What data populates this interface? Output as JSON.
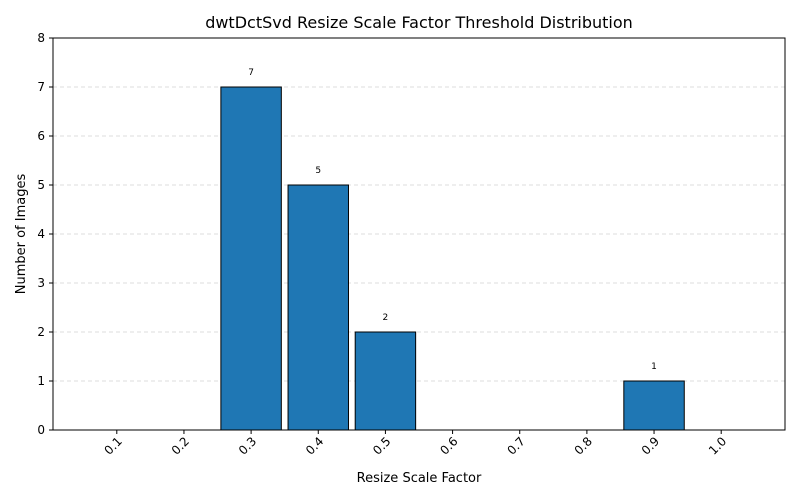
{
  "chart_data": {
    "type": "bar",
    "title": "dwtDctSvd Resize Scale Factor Threshold Distribution",
    "xlabel": "Resize Scale Factor",
    "ylabel": "Number of Images",
    "categories": [
      "0.1",
      "0.2",
      "0.3",
      "0.4",
      "0.5",
      "0.6",
      "0.7",
      "0.8",
      "0.9",
      "1.0"
    ],
    "values": [
      0,
      0,
      7,
      5,
      2,
      0,
      0,
      0,
      1,
      0
    ],
    "data_labels": [
      "",
      "",
      "7",
      "5",
      "2",
      "",
      "",
      "",
      "1",
      ""
    ],
    "ylim": [
      0,
      8
    ],
    "yticks": [
      "0",
      "1",
      "2",
      "3",
      "4",
      "5",
      "6",
      "7",
      "8"
    ],
    "grid": "y-dashed",
    "bar_color": "#1f77b4",
    "edge_color": "#000000",
    "grid_color": "#dddddd"
  }
}
